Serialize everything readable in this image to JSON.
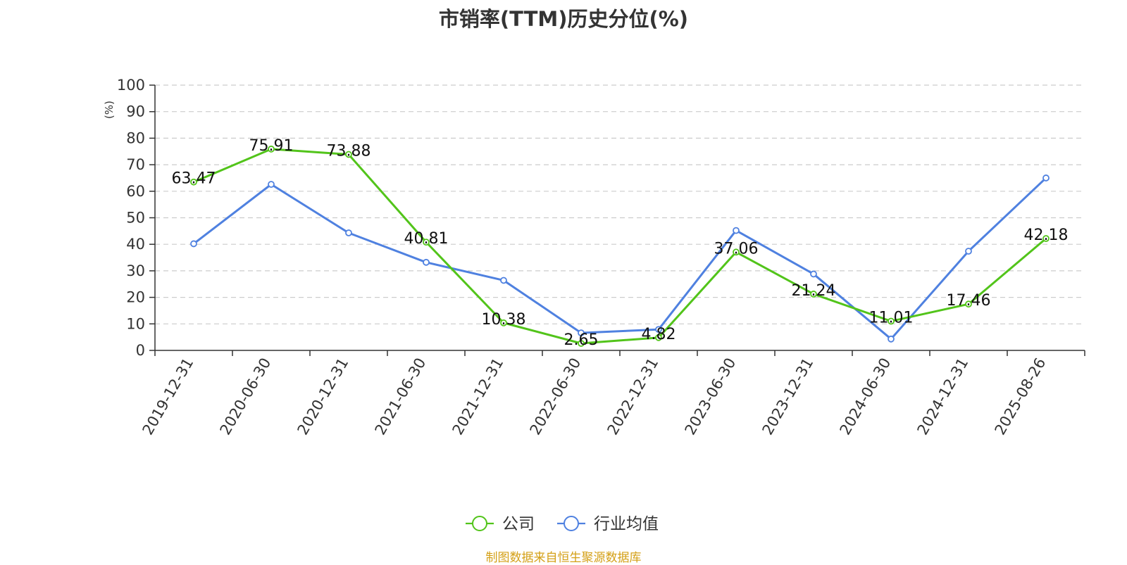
{
  "title": "市销率(TTM)历史分位(%)",
  "source": "制图数据来自恒生聚源数据库",
  "chart_data": {
    "type": "line",
    "title": "市销率(TTM)历史分位(%)",
    "ylabel": "(%)",
    "ylabel_color": "#ff0000",
    "ylim": [
      0,
      100
    ],
    "yticks": [
      0,
      10,
      20,
      30,
      40,
      50,
      60,
      70,
      80,
      90,
      100
    ],
    "grid": "horizontal dashed",
    "legend_position": "bottom-center",
    "categories": [
      "2019-12-31",
      "2020-06-30",
      "2020-12-31",
      "2021-06-30",
      "2021-12-31",
      "2022-06-30",
      "2022-12-31",
      "2023-06-30",
      "2023-12-31",
      "2024-06-30",
      "2024-12-31",
      "2025-08-26"
    ],
    "series": [
      {
        "name": "公司",
        "color": "#52c41a",
        "labeled": true,
        "values": [
          63.47,
          75.91,
          73.88,
          40.81,
          10.38,
          2.65,
          4.82,
          37.06,
          21.24,
          11.01,
          17.46,
          42.18
        ]
      },
      {
        "name": "行业均值",
        "color": "#4f81e0",
        "labeled": false,
        "values": [
          40.2,
          62.6,
          44.3,
          33.2,
          26.4,
          6.6,
          7.9,
          45.2,
          28.8,
          4.3,
          37.4,
          65.0
        ]
      }
    ]
  }
}
